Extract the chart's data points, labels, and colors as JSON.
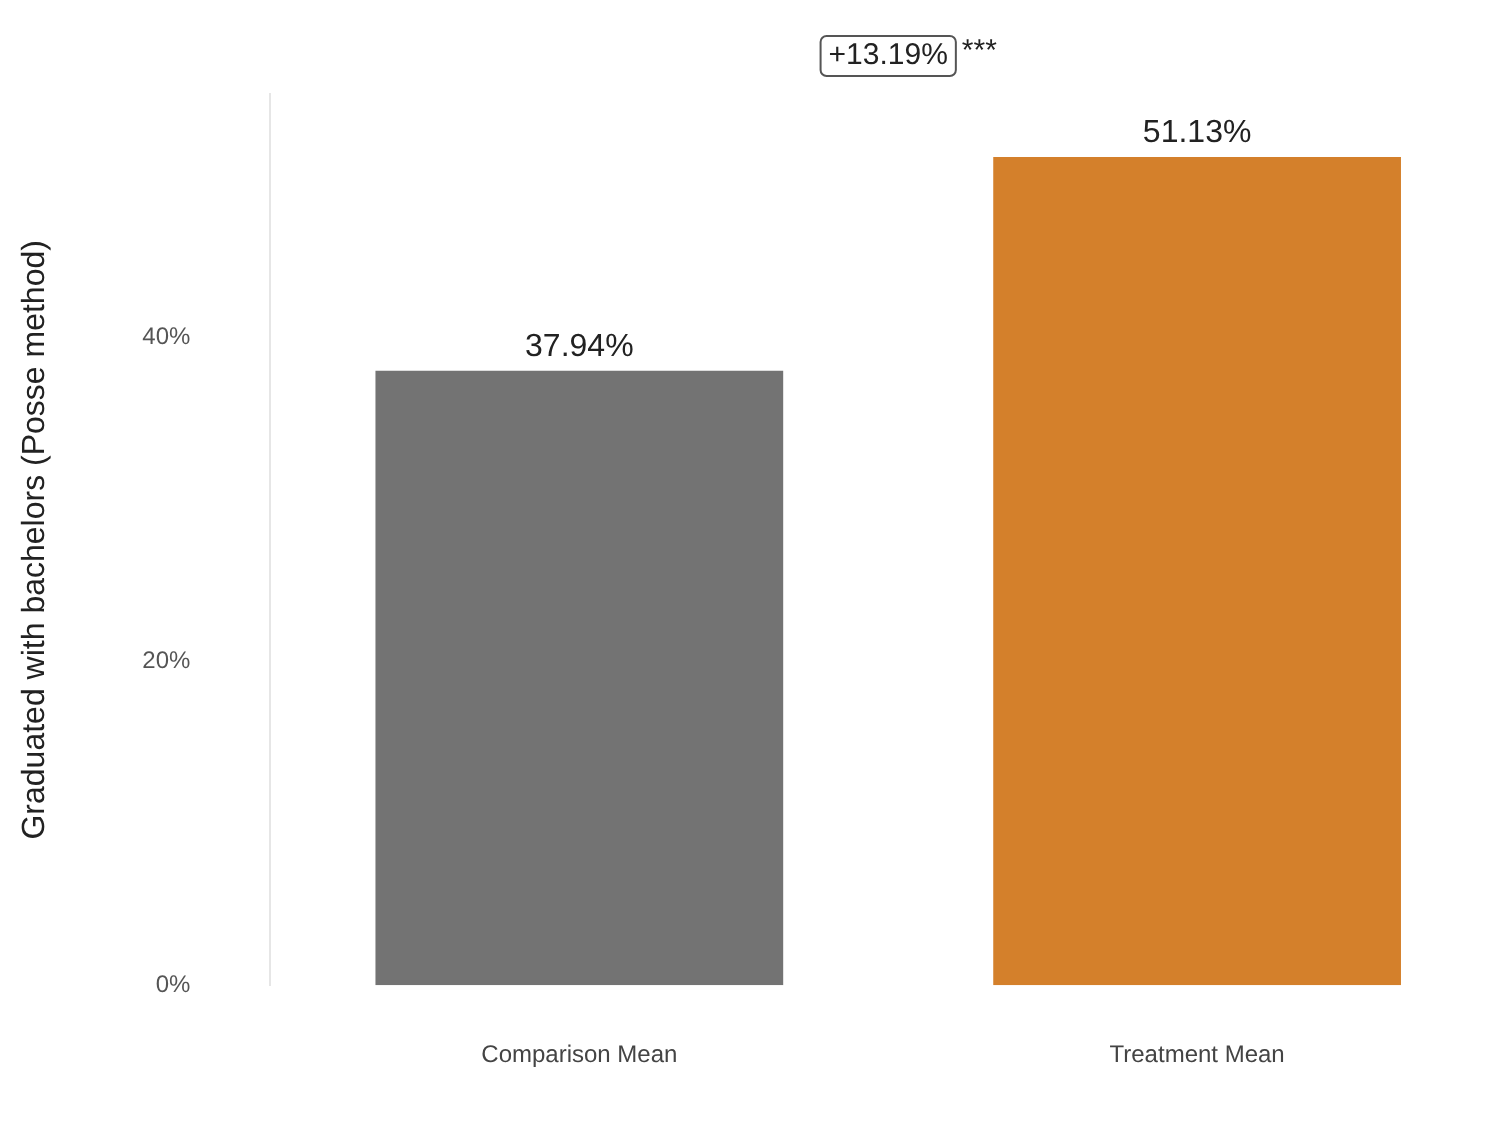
{
  "chart_data": {
    "type": "bar",
    "ylabel": "Graduated with bachelors (Posse method)",
    "categories": [
      "Comparison Mean",
      "Treatment Mean"
    ],
    "values": [
      37.94,
      51.13
    ],
    "colors": [
      "#737373",
      "#d4802b"
    ],
    "value_labels": [
      "37.94%",
      "51.13%"
    ],
    "ylim": [
      0,
      55
    ],
    "yticks": [
      {
        "value": 0,
        "label": "0%"
      },
      {
        "value": 20,
        "label": "20%"
      },
      {
        "value": 40,
        "label": "40%"
      }
    ],
    "annotations": [
      "+13.19%",
      "***"
    ],
    "grid": false,
    "legend": false
  }
}
